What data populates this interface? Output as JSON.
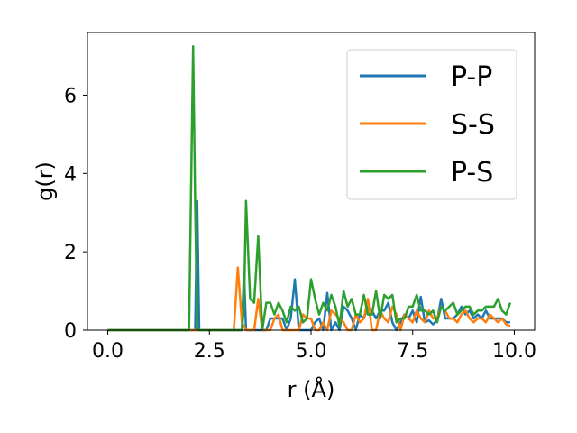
{
  "chart_data": {
    "type": "line",
    "title": "",
    "xlabel": "r (Å)",
    "ylabel": "g(r)",
    "xlim": [
      -0.5,
      10.5
    ],
    "ylim": [
      0,
      7.6
    ],
    "xticks": [
      0.0,
      2.5,
      5.0,
      7.5,
      10.0
    ],
    "xtick_labels": [
      "0.0",
      "2.5",
      "5.0",
      "7.5",
      "10.0"
    ],
    "yticks": [
      0,
      2,
      4,
      6
    ],
    "ytick_labels": [
      "0",
      "2",
      "4",
      "6"
    ],
    "grid": false,
    "legend": "top-right",
    "series": [
      {
        "name": "P-P",
        "color": "#1f77b4",
        "x": [
          0.0,
          2.1,
          2.15,
          2.2,
          2.25,
          2.3,
          3.2,
          3.3,
          3.35,
          3.4,
          3.5,
          3.9,
          4.0,
          4.3,
          4.4,
          4.5,
          4.6,
          4.7,
          4.8,
          4.9,
          5.0,
          5.1,
          5.2,
          5.3,
          5.4,
          5.5,
          5.6,
          5.7,
          5.8,
          5.9,
          6.0,
          6.1,
          6.2,
          6.3,
          6.4,
          6.5,
          6.6,
          6.7,
          6.8,
          6.9,
          7.0,
          7.1,
          7.2,
          7.3,
          7.4,
          7.5,
          7.6,
          7.7,
          7.8,
          7.9,
          8.0,
          8.1,
          8.2,
          8.3,
          8.4,
          8.5,
          8.6,
          8.7,
          8.8,
          8.9,
          9.0,
          9.1,
          9.2,
          9.3,
          9.4,
          9.5,
          9.6,
          9.7,
          9.8,
          9.9
        ],
        "y": [
          0.0,
          0.0,
          0.0,
          3.3,
          0.0,
          0.0,
          0.0,
          0.0,
          1.5,
          0.0,
          0.0,
          0.0,
          0.3,
          0.3,
          0.0,
          0.3,
          1.3,
          0.0,
          0.0,
          0.0,
          0.0,
          0.2,
          0.3,
          0.0,
          0.95,
          0.0,
          0.2,
          0.0,
          0.6,
          0.5,
          0.3,
          0.0,
          0.4,
          0.3,
          0.6,
          0.5,
          0.3,
          0.5,
          0.5,
          0.7,
          0.2,
          0.0,
          0.2,
          0.4,
          0.3,
          0.5,
          0.2,
          0.85,
          0.2,
          0.25,
          0.15,
          0.25,
          0.8,
          0.3,
          0.3,
          0.3,
          0.4,
          0.6,
          0.4,
          0.5,
          0.3,
          0.4,
          0.3,
          0.5,
          0.3,
          0.3,
          0.3,
          0.3,
          0.2,
          0.2
        ]
      },
      {
        "name": "S-S",
        "color": "#ff7f0e",
        "x": [
          0.0,
          3.1,
          3.2,
          3.3,
          3.4,
          3.5,
          3.6,
          3.7,
          3.8,
          3.9,
          4.0,
          4.1,
          4.2,
          4.3,
          4.4,
          4.5,
          4.6,
          4.7,
          4.8,
          4.9,
          5.0,
          5.1,
          5.2,
          5.3,
          5.4,
          5.5,
          5.6,
          5.7,
          5.8,
          5.9,
          6.0,
          6.1,
          6.2,
          6.3,
          6.4,
          6.5,
          6.6,
          6.7,
          6.8,
          6.9,
          7.0,
          7.1,
          7.2,
          7.3,
          7.4,
          7.5,
          7.6,
          7.7,
          7.8,
          7.9,
          8.0,
          8.1,
          8.2,
          8.3,
          8.4,
          8.5,
          8.6,
          8.7,
          8.8,
          8.9,
          9.0,
          9.1,
          9.2,
          9.3,
          9.4,
          9.5,
          9.6,
          9.7,
          9.8,
          9.9
        ],
        "y": [
          0.0,
          0.0,
          1.6,
          0.2,
          0.0,
          0.0,
          0.0,
          0.8,
          0.0,
          0.0,
          0.0,
          0.3,
          0.4,
          0.0,
          0.0,
          0.0,
          0.0,
          0.0,
          0.4,
          0.3,
          0.3,
          0.0,
          0.0,
          0.2,
          0.0,
          0.5,
          0.4,
          0.3,
          0.2,
          0.0,
          0.0,
          0.4,
          0.2,
          0.3,
          0.8,
          0.0,
          0.0,
          0.5,
          0.3,
          0.2,
          0.6,
          0.4,
          0.0,
          0.4,
          0.3,
          0.2,
          0.5,
          0.3,
          0.2,
          0.5,
          0.3,
          0.3,
          0.6,
          0.5,
          0.3,
          0.3,
          0.2,
          0.4,
          0.5,
          0.3,
          0.2,
          0.3,
          0.3,
          0.2,
          0.4,
          0.3,
          0.2,
          0.3,
          0.15,
          0.1
        ]
      },
      {
        "name": "P-S",
        "color": "#2ca02c",
        "x": [
          0.0,
          2.0,
          2.1,
          2.15,
          2.2,
          3.3,
          3.35,
          3.4,
          3.5,
          3.6,
          3.7,
          3.8,
          3.9,
          4.0,
          4.1,
          4.2,
          4.3,
          4.4,
          4.5,
          4.6,
          4.7,
          4.8,
          4.9,
          5.0,
          5.1,
          5.2,
          5.3,
          5.4,
          5.5,
          5.6,
          5.7,
          5.8,
          5.9,
          6.0,
          6.1,
          6.2,
          6.3,
          6.4,
          6.5,
          6.6,
          6.7,
          6.8,
          6.9,
          7.0,
          7.1,
          7.2,
          7.3,
          7.4,
          7.5,
          7.6,
          7.7,
          7.8,
          7.9,
          8.0,
          8.1,
          8.2,
          8.3,
          8.4,
          8.5,
          8.6,
          8.7,
          8.8,
          8.9,
          9.0,
          9.1,
          9.2,
          9.3,
          9.4,
          9.5,
          9.6,
          9.7,
          9.8,
          9.9
        ],
        "y": [
          0.0,
          0.0,
          7.25,
          3.2,
          0.0,
          0.0,
          0.6,
          3.3,
          0.8,
          0.7,
          2.4,
          0.0,
          0.7,
          0.7,
          0.4,
          0.7,
          0.5,
          0.2,
          0.6,
          0.5,
          0.6,
          0.2,
          0.3,
          1.3,
          0.8,
          0.4,
          0.7,
          0.5,
          0.9,
          0.6,
          0.1,
          1.0,
          0.6,
          0.8,
          0.4,
          0.4,
          0.9,
          0.4,
          0.4,
          1.0,
          0.3,
          0.9,
          0.8,
          0.9,
          0.2,
          0.3,
          0.3,
          0.6,
          0.6,
          0.9,
          0.5,
          0.5,
          0.4,
          0.5,
          0.2,
          0.6,
          0.5,
          0.6,
          0.7,
          0.4,
          0.5,
          0.6,
          0.6,
          0.4,
          0.5,
          0.5,
          0.6,
          0.6,
          0.6,
          0.8,
          0.5,
          0.4,
          0.7
        ]
      }
    ]
  }
}
